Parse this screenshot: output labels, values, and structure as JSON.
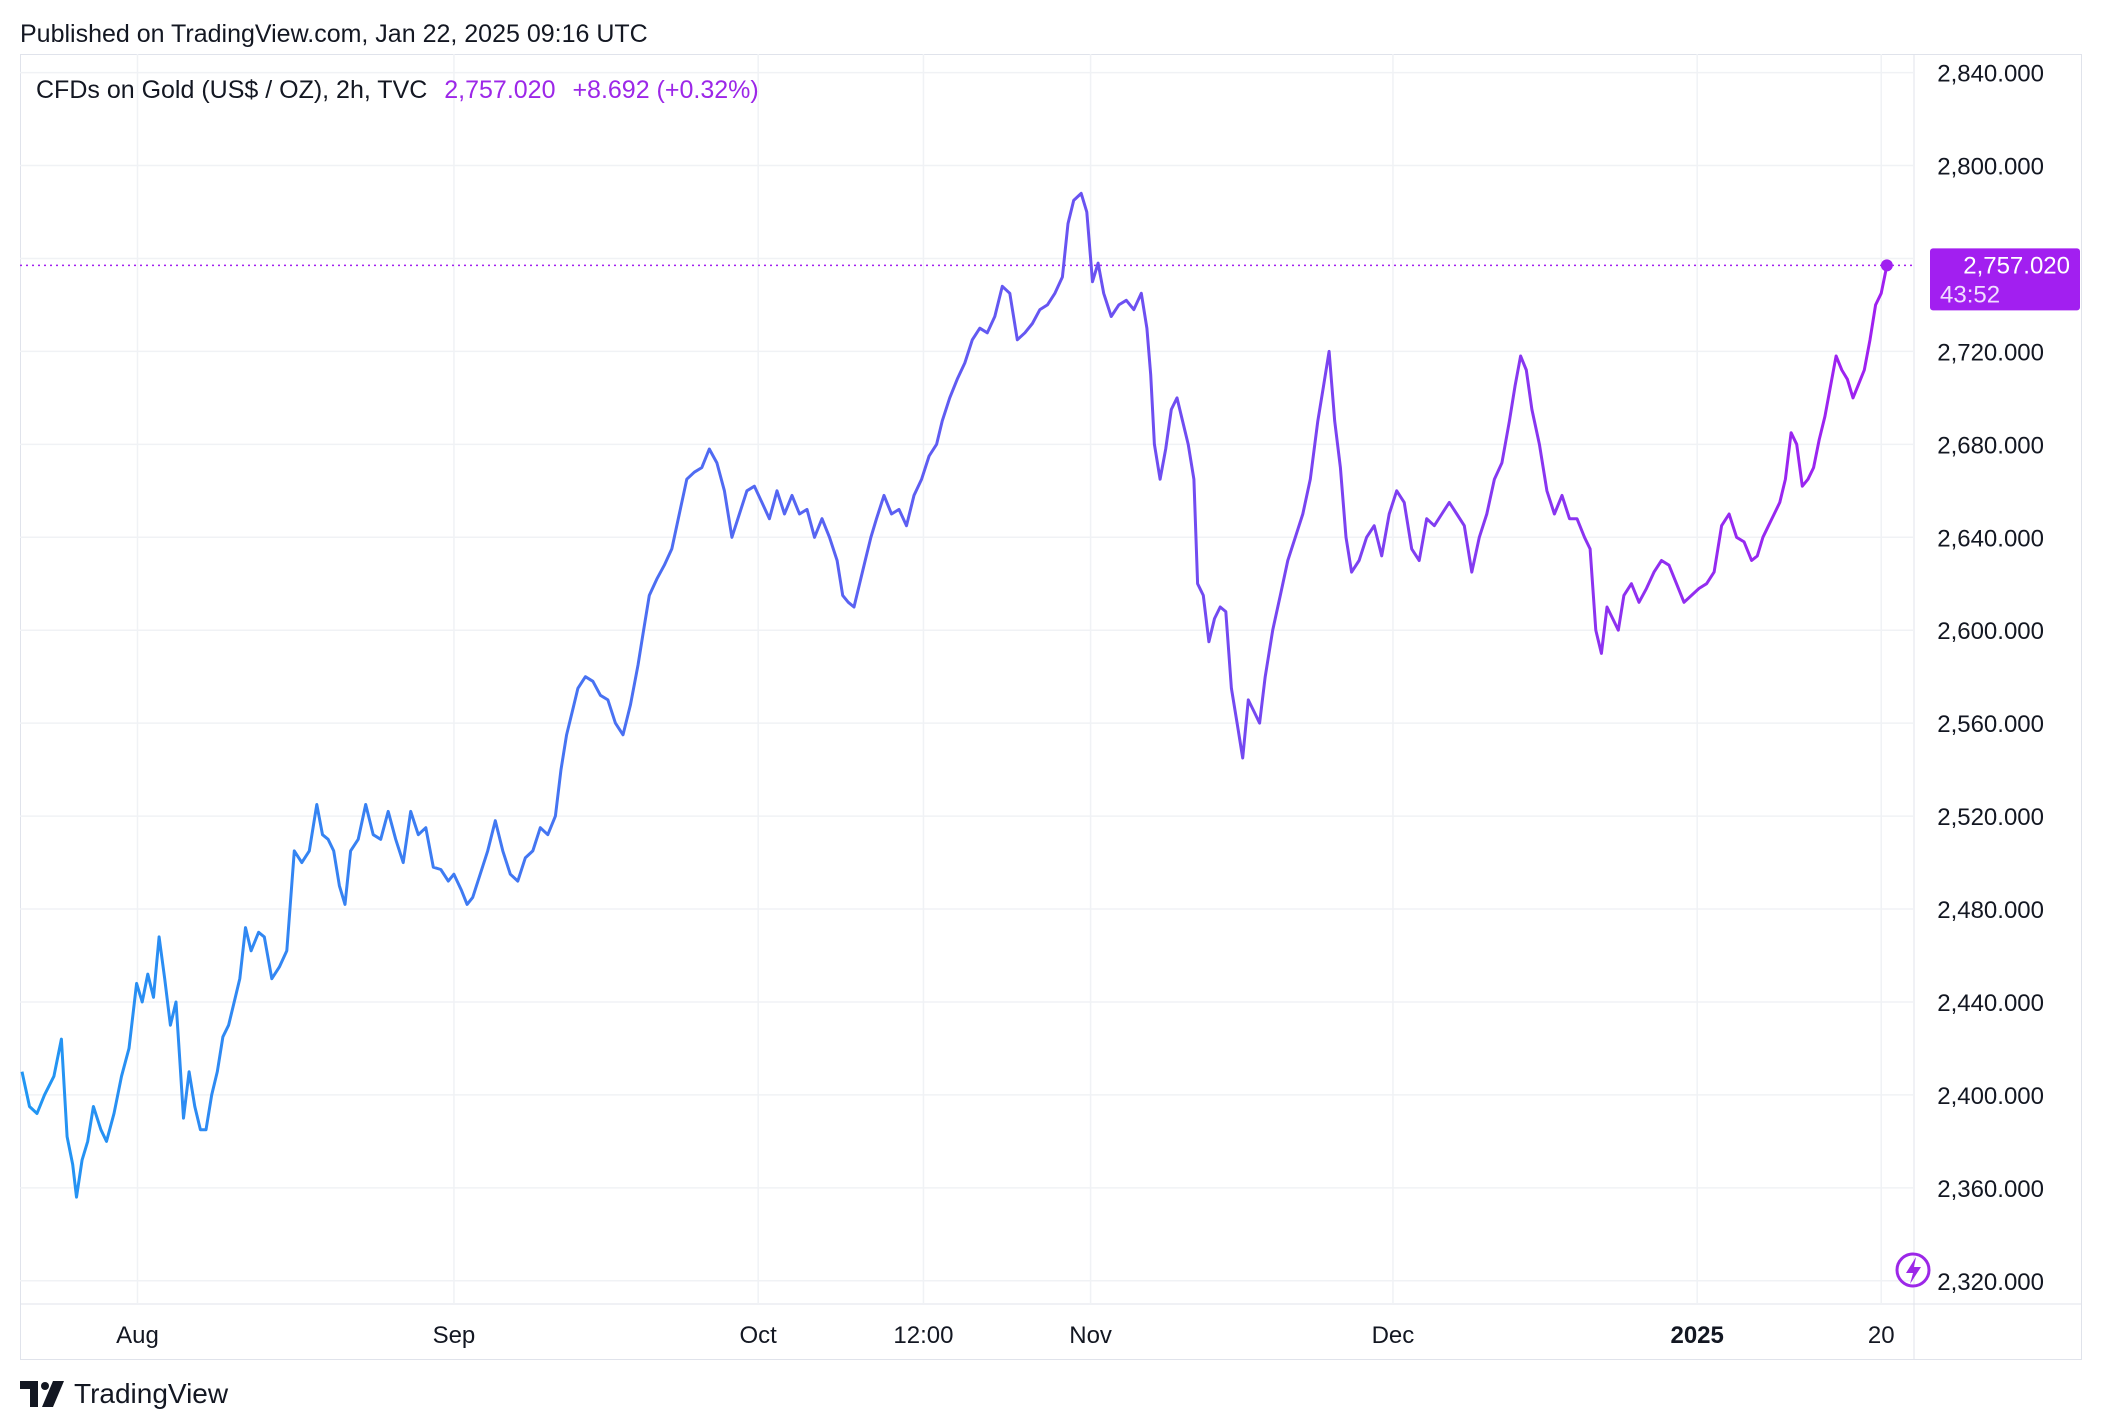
{
  "header": {
    "published": "Published on TradingView.com, Jan 22, 2025 09:16 UTC"
  },
  "legend": {
    "symbol": "CFDs on Gold (US$ / OZ), 2h, TVC",
    "price": "2,757.020",
    "change": "+8.692 (+0.32%)"
  },
  "price_label": {
    "value": "2,757.020",
    "countdown": "43:52"
  },
  "footer": {
    "brand": "TradingView"
  },
  "colors": {
    "line_start": "#2196f3",
    "line_end": "#a020f0",
    "price_box": "#a21ff0",
    "grid": "#f0f2f5"
  },
  "chart_data": {
    "type": "line",
    "ylim": [
      2310,
      2848
    ],
    "y_ticks": [
      "2,320.000",
      "2,360.000",
      "2,400.000",
      "2,440.000",
      "2,480.000",
      "2,520.000",
      "2,560.000",
      "2,600.000",
      "2,640.000",
      "2,680.000",
      "2,720.000",
      "2,760.000",
      "2,800.000",
      "2,840.000"
    ],
    "y_tick_values": [
      2320,
      2360,
      2400,
      2440,
      2480,
      2520,
      2560,
      2600,
      2640,
      2680,
      2720,
      2760,
      2800,
      2840
    ],
    "x_ticks": [
      {
        "label": "Aug",
        "t": 0.0615,
        "bold": false
      },
      {
        "label": "Sep",
        "t": 0.23,
        "bold": false
      },
      {
        "label": "Oct",
        "t": 0.392,
        "bold": false
      },
      {
        "label": "12:00",
        "t": 0.48,
        "bold": false
      },
      {
        "label": "Nov",
        "t": 0.569,
        "bold": false
      },
      {
        "label": "Dec",
        "t": 0.73,
        "bold": false
      },
      {
        "label": "2025",
        "t": 0.892,
        "bold": true
      },
      {
        "label": "20",
        "t": 0.99,
        "bold": false
      }
    ],
    "last_value": 2757.02,
    "series": [
      {
        "points": [
          [
            0.0,
            2410
          ],
          [
            0.004,
            2395
          ],
          [
            0.008,
            2392
          ],
          [
            0.012,
            2400
          ],
          [
            0.017,
            2408
          ],
          [
            0.021,
            2424
          ],
          [
            0.024,
            2382
          ],
          [
            0.027,
            2370
          ],
          [
            0.029,
            2356
          ],
          [
            0.032,
            2372
          ],
          [
            0.035,
            2380
          ],
          [
            0.038,
            2395
          ],
          [
            0.042,
            2385
          ],
          [
            0.045,
            2380
          ],
          [
            0.049,
            2392
          ],
          [
            0.053,
            2408
          ],
          [
            0.057,
            2420
          ],
          [
            0.061,
            2448
          ],
          [
            0.064,
            2440
          ],
          [
            0.067,
            2452
          ],
          [
            0.07,
            2442
          ],
          [
            0.073,
            2468
          ],
          [
            0.076,
            2450
          ],
          [
            0.079,
            2430
          ],
          [
            0.082,
            2440
          ],
          [
            0.084,
            2415
          ],
          [
            0.086,
            2390
          ],
          [
            0.089,
            2410
          ],
          [
            0.092,
            2395
          ],
          [
            0.095,
            2385
          ],
          [
            0.098,
            2385
          ],
          [
            0.101,
            2400
          ],
          [
            0.104,
            2410
          ],
          [
            0.107,
            2425
          ],
          [
            0.11,
            2430
          ],
          [
            0.113,
            2440
          ],
          [
            0.116,
            2450
          ],
          [
            0.119,
            2472
          ],
          [
            0.122,
            2462
          ],
          [
            0.126,
            2470
          ],
          [
            0.129,
            2468
          ],
          [
            0.133,
            2450
          ],
          [
            0.137,
            2455
          ],
          [
            0.141,
            2462
          ],
          [
            0.145,
            2505
          ],
          [
            0.149,
            2500
          ],
          [
            0.153,
            2505
          ],
          [
            0.157,
            2525
          ],
          [
            0.16,
            2512
          ],
          [
            0.163,
            2510
          ],
          [
            0.166,
            2505
          ],
          [
            0.169,
            2490
          ],
          [
            0.172,
            2482
          ],
          [
            0.175,
            2505
          ],
          [
            0.179,
            2510
          ],
          [
            0.183,
            2525
          ],
          [
            0.187,
            2512
          ],
          [
            0.191,
            2510
          ],
          [
            0.195,
            2522
          ],
          [
            0.199,
            2510
          ],
          [
            0.203,
            2500
          ],
          [
            0.207,
            2522
          ],
          [
            0.211,
            2512
          ],
          [
            0.215,
            2515
          ],
          [
            0.219,
            2498
          ],
          [
            0.223,
            2497
          ],
          [
            0.227,
            2492
          ],
          [
            0.23,
            2495
          ],
          [
            0.234,
            2488
          ],
          [
            0.237,
            2482
          ],
          [
            0.24,
            2485
          ],
          [
            0.244,
            2495
          ],
          [
            0.248,
            2505
          ],
          [
            0.252,
            2518
          ],
          [
            0.256,
            2505
          ],
          [
            0.26,
            2495
          ],
          [
            0.264,
            2492
          ],
          [
            0.268,
            2502
          ],
          [
            0.272,
            2505
          ],
          [
            0.276,
            2515
          ],
          [
            0.28,
            2512
          ],
          [
            0.284,
            2520
          ],
          [
            0.287,
            2540
          ],
          [
            0.29,
            2555
          ],
          [
            0.293,
            2565
          ],
          [
            0.296,
            2575
          ],
          [
            0.3,
            2580
          ],
          [
            0.304,
            2578
          ],
          [
            0.308,
            2572
          ],
          [
            0.312,
            2570
          ],
          [
            0.316,
            2560
          ],
          [
            0.32,
            2555
          ],
          [
            0.324,
            2568
          ],
          [
            0.328,
            2585
          ],
          [
            0.331,
            2600
          ],
          [
            0.334,
            2615
          ],
          [
            0.338,
            2622
          ],
          [
            0.342,
            2628
          ],
          [
            0.346,
            2635
          ],
          [
            0.35,
            2650
          ],
          [
            0.354,
            2665
          ],
          [
            0.358,
            2668
          ],
          [
            0.362,
            2670
          ],
          [
            0.366,
            2678
          ],
          [
            0.37,
            2672
          ],
          [
            0.374,
            2660
          ],
          [
            0.378,
            2640
          ],
          [
            0.382,
            2650
          ],
          [
            0.386,
            2660
          ],
          [
            0.39,
            2662
          ],
          [
            0.394,
            2655
          ],
          [
            0.398,
            2648
          ],
          [
            0.402,
            2660
          ],
          [
            0.406,
            2650
          ],
          [
            0.41,
            2658
          ],
          [
            0.414,
            2650
          ],
          [
            0.418,
            2652
          ],
          [
            0.422,
            2640
          ],
          [
            0.426,
            2648
          ],
          [
            0.43,
            2640
          ],
          [
            0.434,
            2630
          ],
          [
            0.437,
            2615
          ],
          [
            0.44,
            2612
          ],
          [
            0.443,
            2610
          ],
          [
            0.446,
            2620
          ],
          [
            0.449,
            2630
          ],
          [
            0.452,
            2640
          ],
          [
            0.455,
            2648
          ],
          [
            0.459,
            2658
          ],
          [
            0.463,
            2650
          ],
          [
            0.467,
            2652
          ],
          [
            0.471,
            2645
          ],
          [
            0.475,
            2658
          ],
          [
            0.479,
            2665
          ],
          [
            0.483,
            2675
          ],
          [
            0.487,
            2680
          ],
          [
            0.49,
            2690
          ],
          [
            0.494,
            2700
          ],
          [
            0.498,
            2708
          ],
          [
            0.502,
            2715
          ],
          [
            0.506,
            2725
          ],
          [
            0.51,
            2730
          ],
          [
            0.514,
            2728
          ],
          [
            0.518,
            2735
          ],
          [
            0.522,
            2748
          ],
          [
            0.526,
            2745
          ],
          [
            0.53,
            2725
          ],
          [
            0.534,
            2728
          ],
          [
            0.538,
            2732
          ],
          [
            0.542,
            2738
          ],
          [
            0.546,
            2740
          ],
          [
            0.55,
            2745
          ],
          [
            0.554,
            2752
          ],
          [
            0.557,
            2775
          ],
          [
            0.56,
            2785
          ],
          [
            0.564,
            2788
          ],
          [
            0.567,
            2780
          ],
          [
            0.57,
            2750
          ],
          [
            0.573,
            2758
          ],
          [
            0.576,
            2745
          ],
          [
            0.58,
            2735
          ],
          [
            0.584,
            2740
          ],
          [
            0.588,
            2742
          ],
          [
            0.592,
            2738
          ],
          [
            0.596,
            2745
          ],
          [
            0.599,
            2730
          ],
          [
            0.601,
            2710
          ],
          [
            0.603,
            2680
          ],
          [
            0.606,
            2665
          ],
          [
            0.609,
            2678
          ],
          [
            0.612,
            2695
          ],
          [
            0.615,
            2700
          ],
          [
            0.618,
            2690
          ],
          [
            0.621,
            2680
          ],
          [
            0.624,
            2665
          ],
          [
            0.626,
            2620
          ],
          [
            0.629,
            2615
          ],
          [
            0.632,
            2595
          ],
          [
            0.635,
            2605
          ],
          [
            0.638,
            2610
          ],
          [
            0.641,
            2608
          ],
          [
            0.644,
            2575
          ],
          [
            0.647,
            2560
          ],
          [
            0.65,
            2545
          ],
          [
            0.653,
            2570
          ],
          [
            0.656,
            2565
          ],
          [
            0.659,
            2560
          ],
          [
            0.662,
            2580
          ],
          [
            0.666,
            2600
          ],
          [
            0.67,
            2615
          ],
          [
            0.674,
            2630
          ],
          [
            0.678,
            2640
          ],
          [
            0.682,
            2650
          ],
          [
            0.686,
            2665
          ],
          [
            0.69,
            2690
          ],
          [
            0.693,
            2705
          ],
          [
            0.696,
            2720
          ],
          [
            0.699,
            2690
          ],
          [
            0.702,
            2670
          ],
          [
            0.705,
            2640
          ],
          [
            0.708,
            2625
          ],
          [
            0.712,
            2630
          ],
          [
            0.716,
            2640
          ],
          [
            0.72,
            2645
          ],
          [
            0.724,
            2632
          ],
          [
            0.728,
            2650
          ],
          [
            0.732,
            2660
          ],
          [
            0.736,
            2655
          ],
          [
            0.74,
            2635
          ],
          [
            0.744,
            2630
          ],
          [
            0.748,
            2648
          ],
          [
            0.752,
            2645
          ],
          [
            0.756,
            2650
          ],
          [
            0.76,
            2655
          ],
          [
            0.764,
            2650
          ],
          [
            0.768,
            2645
          ],
          [
            0.772,
            2625
          ],
          [
            0.776,
            2640
          ],
          [
            0.78,
            2650
          ],
          [
            0.784,
            2665
          ],
          [
            0.788,
            2672
          ],
          [
            0.792,
            2690
          ],
          [
            0.795,
            2705
          ],
          [
            0.798,
            2718
          ],
          [
            0.801,
            2712
          ],
          [
            0.804,
            2695
          ],
          [
            0.808,
            2680
          ],
          [
            0.812,
            2660
          ],
          [
            0.816,
            2650
          ],
          [
            0.82,
            2658
          ],
          [
            0.824,
            2648
          ],
          [
            0.828,
            2648
          ],
          [
            0.832,
            2640
          ],
          [
            0.835,
            2635
          ],
          [
            0.838,
            2600
          ],
          [
            0.841,
            2590
          ],
          [
            0.844,
            2610
          ],
          [
            0.847,
            2605
          ],
          [
            0.85,
            2600
          ],
          [
            0.853,
            2615
          ],
          [
            0.857,
            2620
          ],
          [
            0.861,
            2612
          ],
          [
            0.865,
            2618
          ],
          [
            0.869,
            2625
          ],
          [
            0.873,
            2630
          ],
          [
            0.877,
            2628
          ],
          [
            0.881,
            2620
          ],
          [
            0.885,
            2612
          ],
          [
            0.889,
            2615
          ],
          [
            0.893,
            2618
          ],
          [
            0.897,
            2620
          ],
          [
            0.901,
            2625
          ],
          [
            0.905,
            2645
          ],
          [
            0.909,
            2650
          ],
          [
            0.913,
            2640
          ],
          [
            0.917,
            2638
          ],
          [
            0.921,
            2630
          ],
          [
            0.924,
            2632
          ],
          [
            0.927,
            2640
          ],
          [
            0.93,
            2645
          ],
          [
            0.933,
            2650
          ],
          [
            0.936,
            2655
          ],
          [
            0.939,
            2665
          ],
          [
            0.942,
            2685
          ],
          [
            0.945,
            2680
          ],
          [
            0.948,
            2662
          ],
          [
            0.951,
            2665
          ],
          [
            0.954,
            2670
          ],
          [
            0.957,
            2682
          ],
          [
            0.96,
            2692
          ],
          [
            0.963,
            2705
          ],
          [
            0.966,
            2718
          ],
          [
            0.969,
            2712
          ],
          [
            0.972,
            2708
          ],
          [
            0.975,
            2700
          ],
          [
            0.978,
            2706
          ],
          [
            0.981,
            2712
          ],
          [
            0.984,
            2725
          ],
          [
            0.987,
            2740
          ],
          [
            0.99,
            2745
          ],
          [
            0.993,
            2757.02
          ]
        ]
      }
    ]
  }
}
